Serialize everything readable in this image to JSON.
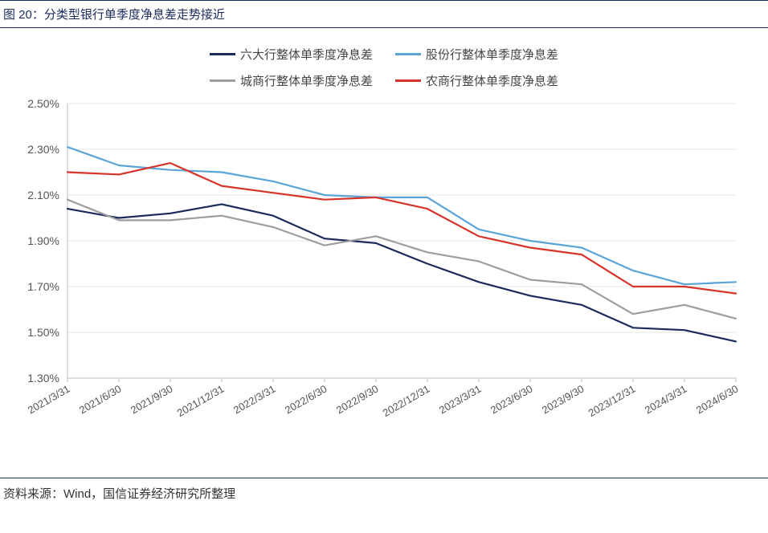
{
  "figure_title": "图 20：分类型银行单季度净息差走势接近",
  "source_label": "资料来源：Wind，国信证券经济研究所整理",
  "chart": {
    "type": "line",
    "background_color": "#ffffff",
    "grid_color": "#e6e6e6",
    "axis_color": "#bdbdbd",
    "ylim": [
      1.3,
      2.5
    ],
    "ytick_step": 0.2,
    "y_format": "percent_2dp",
    "y_ticks": [
      "2.50%",
      "2.30%",
      "2.10%",
      "1.90%",
      "1.70%",
      "1.50%",
      "1.30%"
    ],
    "x_labels": [
      "2021/3/31",
      "2021/6/30",
      "2021/9/30",
      "2021/12/31",
      "2022/3/31",
      "2022/6/30",
      "2022/9/30",
      "2022/12/31",
      "2023/3/31",
      "2023/6/30",
      "2023/9/30",
      "2023/12/31",
      "2024/3/31",
      "2024/6/30"
    ],
    "x_tick_rotation_deg": 30,
    "label_fontsize": 14,
    "line_width": 2.2,
    "series": [
      {
        "key": "big6",
        "label": "六大行整体单季度净息差",
        "color": "#1a2a5c",
        "values": [
          2.04,
          2.0,
          2.02,
          2.06,
          2.01,
          1.91,
          1.89,
          1.8,
          1.72,
          1.66,
          1.62,
          1.52,
          1.51,
          1.46
        ]
      },
      {
        "key": "joint_stock",
        "label": "股份行整体单季度净息差",
        "color": "#5aa4d8",
        "values": [
          2.31,
          2.23,
          2.21,
          2.2,
          2.16,
          2.1,
          2.09,
          2.09,
          1.95,
          1.9,
          1.87,
          1.77,
          1.71,
          1.72
        ]
      },
      {
        "key": "city",
        "label": "城商行整体单季度净息差",
        "color": "#9d9d9d",
        "values": [
          2.08,
          1.99,
          1.99,
          2.01,
          1.96,
          1.88,
          1.92,
          1.85,
          1.81,
          1.73,
          1.71,
          1.58,
          1.62,
          1.56
        ]
      },
      {
        "key": "rural",
        "label": "农商行整体单季度净息差",
        "color": "#d6342b",
        "values": [
          2.2,
          2.19,
          2.24,
          2.14,
          2.11,
          2.08,
          2.09,
          2.04,
          1.92,
          1.87,
          1.84,
          1.7,
          1.7,
          1.67
        ]
      }
    ],
    "legend_rows": [
      [
        0,
        1
      ],
      [
        2,
        3
      ]
    ]
  }
}
